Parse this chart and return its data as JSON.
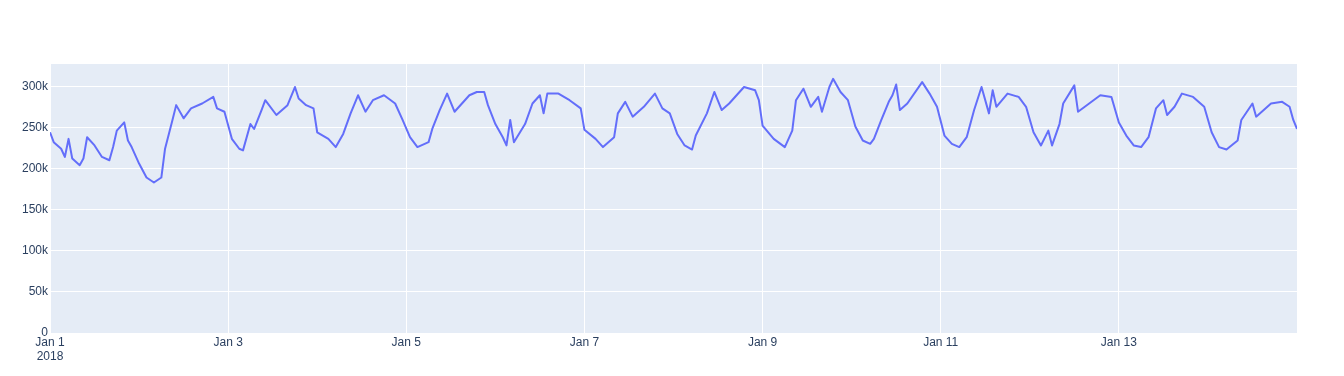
{
  "chart_data": {
    "type": "line",
    "x": [
      "2018-01-01T00:00",
      "2018-01-01T01:00",
      "2018-01-01T03:00",
      "2018-01-01T04:00",
      "2018-01-01T05:00",
      "2018-01-01T06:00",
      "2018-01-01T08:00",
      "2018-01-01T09:00",
      "2018-01-01T10:00",
      "2018-01-01T12:00",
      "2018-01-01T14:00",
      "2018-01-01T16:00",
      "2018-01-01T17:00",
      "2018-01-01T18:00",
      "2018-01-01T20:00",
      "2018-01-01T21:00",
      "2018-01-01T22:00",
      "2018-01-02T00:00",
      "2018-01-02T02:00",
      "2018-01-02T04:00",
      "2018-01-02T06:00",
      "2018-01-02T07:00",
      "2018-01-02T09:00",
      "2018-01-02T10:00",
      "2018-01-02T12:00",
      "2018-01-02T14:00",
      "2018-01-02T17:00",
      "2018-01-02T20:00",
      "2018-01-02T21:00",
      "2018-01-02T23:00",
      "2018-01-03T01:00",
      "2018-01-03T03:00",
      "2018-01-03T04:00",
      "2018-01-03T06:00",
      "2018-01-03T07:00",
      "2018-01-03T09:00",
      "2018-01-03T10:00",
      "2018-01-03T13:00",
      "2018-01-03T16:00",
      "2018-01-03T18:00",
      "2018-01-03T19:00",
      "2018-01-03T21:00",
      "2018-01-03T23:00",
      "2018-01-04T00:00",
      "2018-01-04T03:00",
      "2018-01-04T05:00",
      "2018-01-04T07:00",
      "2018-01-04T09:00",
      "2018-01-04T11:00",
      "2018-01-04T13:00",
      "2018-01-04T15:00",
      "2018-01-04T18:00",
      "2018-01-04T21:00",
      "2018-01-04T23:00",
      "2018-01-05T01:00",
      "2018-01-05T03:00",
      "2018-01-05T06:00",
      "2018-01-05T07:00",
      "2018-01-05T09:00",
      "2018-01-05T11:00",
      "2018-01-05T13:00",
      "2018-01-05T15:00",
      "2018-01-05T17:00",
      "2018-01-05T19:00",
      "2018-01-05T21:00",
      "2018-01-05T22:00",
      "2018-01-06T00:00",
      "2018-01-06T02:00",
      "2018-01-06T03:00",
      "2018-01-06T04:00",
      "2018-01-06T05:00",
      "2018-01-06T08:00",
      "2018-01-06T10:00",
      "2018-01-06T12:00",
      "2018-01-06T13:00",
      "2018-01-06T14:00",
      "2018-01-06T17:00",
      "2018-01-06T20:00",
      "2018-01-06T23:00",
      "2018-01-07T00:00",
      "2018-01-07T03:00",
      "2018-01-07T05:00",
      "2018-01-07T08:00",
      "2018-01-07T09:00",
      "2018-01-07T11:00",
      "2018-01-07T13:00",
      "2018-01-07T16:00",
      "2018-01-07T19:00",
      "2018-01-07T21:00",
      "2018-01-07T23:00",
      "2018-01-08T01:00",
      "2018-01-08T03:00",
      "2018-01-08T05:00",
      "2018-01-08T06:00",
      "2018-01-08T09:00",
      "2018-01-08T11:00",
      "2018-01-08T13:00",
      "2018-01-08T15:00",
      "2018-01-08T19:00",
      "2018-01-08T22:00",
      "2018-01-08T23:00",
      "2018-01-09T00:00",
      "2018-01-09T03:00",
      "2018-01-09T06:00",
      "2018-01-09T08:00",
      "2018-01-09T09:00",
      "2018-01-09T11:00",
      "2018-01-09T13:00",
      "2018-01-09T15:00",
      "2018-01-09T16:00",
      "2018-01-09T18:00",
      "2018-01-09T19:00",
      "2018-01-09T21:00",
      "2018-01-09T23:00",
      "2018-01-10T01:00",
      "2018-01-10T03:00",
      "2018-01-10T05:00",
      "2018-01-10T06:00",
      "2018-01-10T08:00",
      "2018-01-10T10:00",
      "2018-01-10T11:00",
      "2018-01-10T12:00",
      "2018-01-10T13:00",
      "2018-01-10T15:00",
      "2018-01-10T19:00",
      "2018-01-10T21:00",
      "2018-01-10T23:00",
      "2018-01-11T01:00",
      "2018-01-11T03:00",
      "2018-01-11T05:00",
      "2018-01-11T07:00",
      "2018-01-11T09:00",
      "2018-01-11T11:00",
      "2018-01-11T13:00",
      "2018-01-11T14:00",
      "2018-01-11T15:00",
      "2018-01-11T18:00",
      "2018-01-11T21:00",
      "2018-01-11T23:00",
      "2018-01-12T01:00",
      "2018-01-12T03:00",
      "2018-01-12T05:00",
      "2018-01-12T06:00",
      "2018-01-12T08:00",
      "2018-01-12T09:00",
      "2018-01-12T12:00",
      "2018-01-12T13:00",
      "2018-01-12T16:00",
      "2018-01-12T19:00",
      "2018-01-12T22:00",
      "2018-01-13T00:00",
      "2018-01-13T02:00",
      "2018-01-13T04:00",
      "2018-01-13T06:00",
      "2018-01-13T08:00",
      "2018-01-13T10:00",
      "2018-01-13T12:00",
      "2018-01-13T13:00",
      "2018-01-13T15:00",
      "2018-01-13T17:00",
      "2018-01-13T20:00",
      "2018-01-13T23:00",
      "2018-01-14T01:00",
      "2018-01-14T03:00",
      "2018-01-14T05:00",
      "2018-01-14T08:00",
      "2018-01-14T09:00",
      "2018-01-14T12:00",
      "2018-01-14T13:00",
      "2018-01-14T17:00",
      "2018-01-14T20:00",
      "2018-01-14T22:00",
      "2018-01-14T23:00",
      "2018-01-15T00:00"
    ],
    "series": [
      {
        "color": "#636efa",
        "values": [
          244000,
          232000,
          224000,
          214000,
          236000,
          212000,
          204000,
          212000,
          238000,
          228000,
          214000,
          210000,
          226000,
          246000,
          256000,
          234000,
          226000,
          206000,
          189000,
          183000,
          189000,
          224000,
          259000,
          277000,
          261000,
          273000,
          279000,
          287000,
          273000,
          269000,
          236000,
          224000,
          222000,
          254000,
          248000,
          271000,
          283000,
          265000,
          277000,
          299000,
          285000,
          277000,
          273000,
          244000,
          236000,
          226000,
          242000,
          267000,
          289000,
          269000,
          283000,
          289000,
          279000,
          259000,
          238000,
          226000,
          232000,
          248000,
          271000,
          291000,
          269000,
          279000,
          289000,
          293000,
          293000,
          277000,
          254000,
          238000,
          228000,
          259000,
          232000,
          254000,
          279000,
          289000,
          267000,
          291000,
          291000,
          283000,
          273000,
          247000,
          236000,
          226000,
          238000,
          267000,
          281000,
          263000,
          275000,
          291000,
          273000,
          267000,
          242000,
          228000,
          223000,
          240000,
          267000,
          293000,
          271000,
          279000,
          299000,
          295000,
          283000,
          252000,
          236000,
          226000,
          246000,
          283000,
          297000,
          275000,
          287000,
          269000,
          299000,
          309000,
          293000,
          283000,
          251000,
          234000,
          230000,
          236000,
          259000,
          281000,
          289000,
          302000,
          271000,
          279000,
          305000,
          291000,
          275000,
          240000,
          230000,
          226000,
          238000,
          271000,
          299000,
          267000,
          295000,
          275000,
          291000,
          287000,
          275000,
          244000,
          228000,
          246000,
          228000,
          254000,
          279000,
          301000,
          269000,
          279000,
          289000,
          287000,
          256000,
          240000,
          228000,
          226000,
          238000,
          273000,
          283000,
          265000,
          275000,
          291000,
          287000,
          275000,
          244000,
          226000,
          223000,
          234000,
          259000,
          279000,
          263000,
          279000,
          281000,
          275000,
          259000,
          248000
        ]
      }
    ],
    "xlim": [
      "2018-01-01",
      "2018-01-15"
    ],
    "xticks": [
      {
        "value": "2018-01-01",
        "label": "Jan 1\n2018"
      },
      {
        "value": "2018-01-03",
        "label": "Jan 3"
      },
      {
        "value": "2018-01-05",
        "label": "Jan 5"
      },
      {
        "value": "2018-01-07",
        "label": "Jan 7"
      },
      {
        "value": "2018-01-09",
        "label": "Jan 9"
      },
      {
        "value": "2018-01-11",
        "label": "Jan 11"
      },
      {
        "value": "2018-01-13",
        "label": "Jan 13"
      }
    ],
    "ylim": [
      0,
      327000
    ],
    "yticks": [
      {
        "value": 0,
        "label": "0"
      },
      {
        "value": 50000,
        "label": "50k"
      },
      {
        "value": 100000,
        "label": "100k"
      },
      {
        "value": 150000,
        "label": "150k"
      },
      {
        "value": 200000,
        "label": "200k"
      },
      {
        "value": 250000,
        "label": "250k"
      },
      {
        "value": 300000,
        "label": "300k"
      }
    ],
    "grid": true,
    "line_style": "solid",
    "marker": "none"
  }
}
